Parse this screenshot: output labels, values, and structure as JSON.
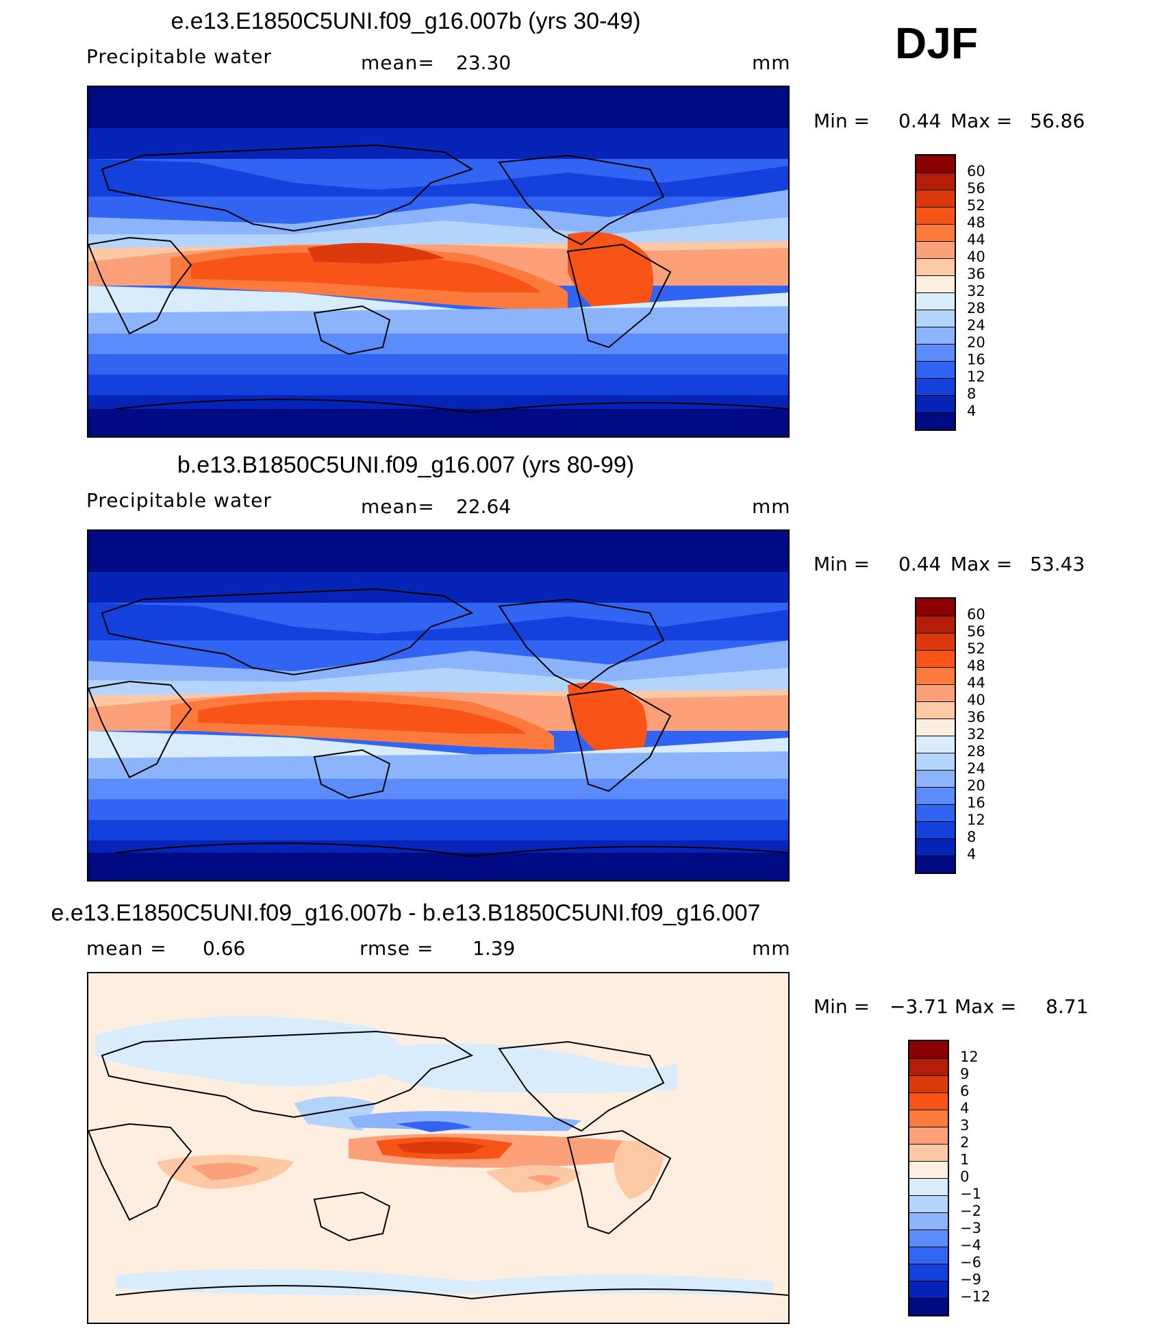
{
  "season": "DJF",
  "panels": [
    {
      "title": "e.e13.E1850C5UNI.f09_g16.007b (yrs 30-49)",
      "left_label": "Precipitable  water",
      "center_label": "mean=",
      "center_value": "23.30",
      "units": "mm",
      "min_label": "Min  =",
      "min_value": "0.44",
      "max_label": "Max  =",
      "max_value": "56.86"
    },
    {
      "title": "b.e13.B1850C5UNI.f09_g16.007 (yrs 80-99)",
      "left_label": "Precipitable  water",
      "center_label": "mean=",
      "center_value": "22.64",
      "units": "mm",
      "min_label": "Min  =",
      "min_value": "0.44",
      "max_label": "Max  =",
      "max_value": "53.43"
    },
    {
      "title": "e.e13.E1850C5UNI.f09_g16.007b - b.e13.B1850C5UNI.f09_g16.007",
      "left_label": "mean  =",
      "left_value": "0.66",
      "center_label": "rmse  =",
      "center_value": "1.39",
      "units": "mm",
      "min_label": "Min  =",
      "min_value": "−3.71",
      "max_label": "Max  =",
      "max_value": "8.71"
    }
  ],
  "colorbars": {
    "absolute": {
      "ticks": [
        "60",
        "56",
        "52",
        "48",
        "44",
        "40",
        "36",
        "32",
        "28",
        "24",
        "20",
        "16",
        "12",
        "8",
        "4"
      ],
      "colors": [
        "#8b0000",
        "#b41e08",
        "#dc3a0c",
        "#f85418",
        "#fc7a3c",
        "#fca07a",
        "#fdc8a4",
        "#feeee0",
        "#d8ecfc",
        "#b4d4fc",
        "#8cb4fc",
        "#5c8cfc",
        "#3264f4",
        "#1440dc",
        "#0624b8",
        "#000a82"
      ]
    },
    "difference": {
      "ticks": [
        "12",
        "9",
        "6",
        "4",
        "3",
        "2",
        "1",
        "0",
        "−1",
        "−2",
        "−3",
        "−4",
        "−6",
        "−9",
        "−12"
      ],
      "colors": [
        "#8b0000",
        "#b41e08",
        "#dc3a0c",
        "#f85418",
        "#fc7a3c",
        "#fca07a",
        "#fdc8a4",
        "#feeee0",
        "#d8ecfc",
        "#b4d4fc",
        "#8cb4fc",
        "#5c8cfc",
        "#3264f4",
        "#1440dc",
        "#0624b8",
        "#000a82"
      ]
    }
  },
  "chart_data": [
    {
      "type": "heatmap",
      "title": "e.e13.E1850C5UNI.f09_g16.007b (yrs 30-49)",
      "variable": "Precipitable water",
      "units": "mm",
      "mean": 23.3,
      "min": 0.44,
      "max": 56.86,
      "contour_levels": [
        4,
        8,
        12,
        16,
        20,
        24,
        28,
        32,
        36,
        40,
        44,
        48,
        52,
        56,
        60
      ]
    },
    {
      "type": "heatmap",
      "title": "b.e13.B1850C5UNI.f09_g16.007 (yrs 80-99)",
      "variable": "Precipitable water",
      "units": "mm",
      "mean": 22.64,
      "min": 0.44,
      "max": 53.43,
      "contour_levels": [
        4,
        8,
        12,
        16,
        20,
        24,
        28,
        32,
        36,
        40,
        44,
        48,
        52,
        56,
        60
      ]
    },
    {
      "type": "heatmap",
      "title": "e.e13.E1850C5UNI.f09_g16.007b - b.e13.B1850C5UNI.f09_g16.007",
      "units": "mm",
      "mean": 0.66,
      "rmse": 1.39,
      "min": -3.71,
      "max": 8.71,
      "contour_levels": [
        -12,
        -9,
        -6,
        -4,
        -3,
        -2,
        -1,
        0,
        1,
        2,
        3,
        4,
        6,
        9,
        12
      ]
    }
  ]
}
